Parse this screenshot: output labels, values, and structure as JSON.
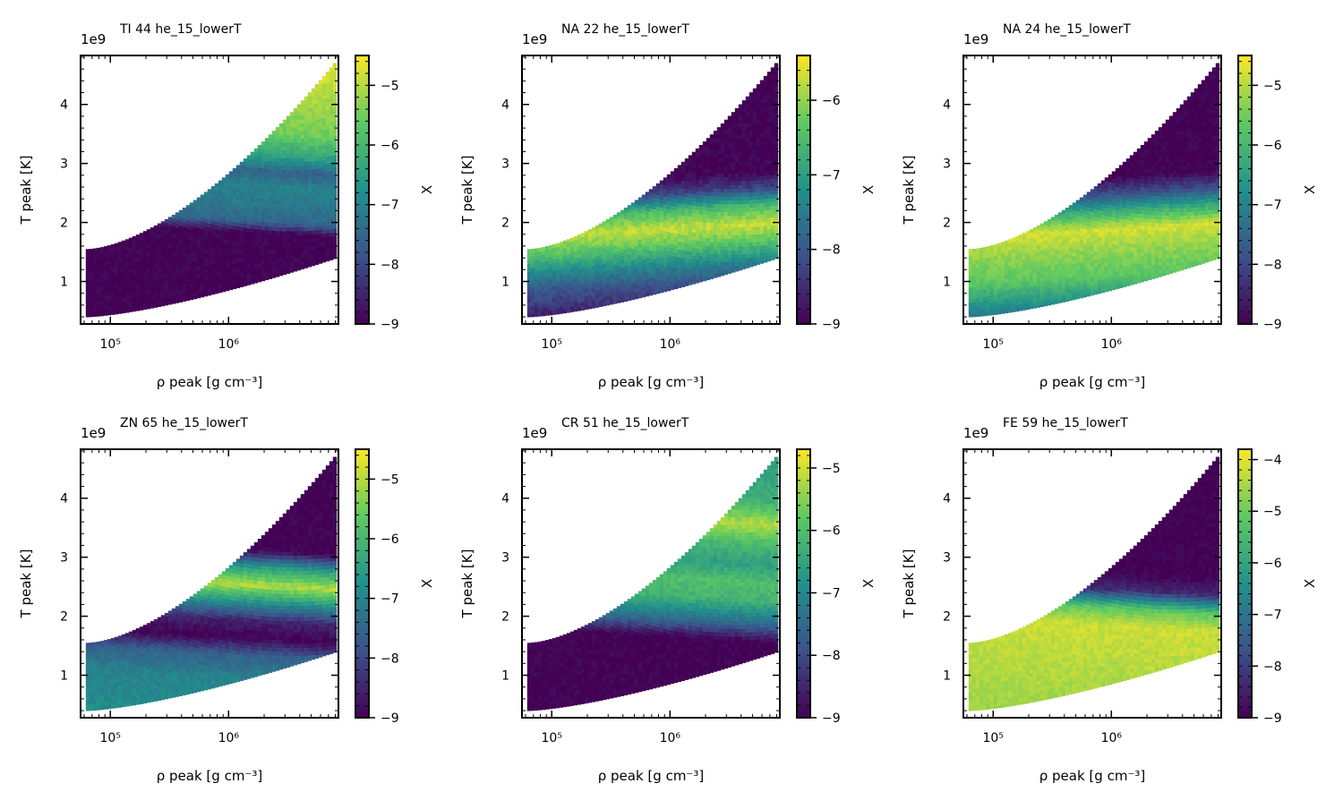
{
  "figure": {
    "x_axis_label": "ρ peak [g cm⁻³]",
    "y_axis_label": "T peak [K]",
    "y_offset_label": "1e9",
    "colorbar_label": "X",
    "colormap": "viridis",
    "colormap_stops": [
      "#440154",
      "#3b528b",
      "#21918c",
      "#5ec962",
      "#fde725"
    ]
  },
  "chart_data": [
    {
      "type": "heatmap",
      "title": "TI 44 he_15_lowerT",
      "xscale": "log",
      "xlim": [
        56000,
        8500000
      ],
      "x_ticks": [
        {
          "value": 100000,
          "label": "10⁵"
        },
        {
          "value": 1000000,
          "label": "10⁶"
        }
      ],
      "ylim": [
        0.28,
        4.83
      ],
      "y_ticks": [
        1,
        2,
        3,
        4
      ],
      "clim": [
        -9,
        -4.5
      ],
      "cbar_ticks": [
        -9,
        -8,
        -7,
        -6,
        -5
      ],
      "color_profile": [
        [
          0.3,
          -9
        ],
        [
          1.9,
          -9
        ],
        [
          2.1,
          -7.5
        ],
        [
          2.4,
          -7.2
        ],
        [
          2.7,
          -7
        ],
        [
          2.95,
          -7.6
        ],
        [
          3.2,
          -6.5
        ],
        [
          3.6,
          -5.5
        ],
        [
          4.2,
          -5.1
        ],
        [
          4.8,
          -4.7
        ]
      ]
    },
    {
      "type": "heatmap",
      "title": "NA 22 he_15_lowerT",
      "xscale": "log",
      "xlim": [
        56000,
        8500000
      ],
      "x_ticks": [
        {
          "value": 100000,
          "label": "10⁵"
        },
        {
          "value": 1000000,
          "label": "10⁶"
        }
      ],
      "ylim": [
        0.28,
        4.83
      ],
      "y_ticks": [
        1,
        2,
        3,
        4
      ],
      "clim": [
        -9,
        -5.4
      ],
      "cbar_ticks": [
        -9,
        -8,
        -7,
        -6
      ],
      "color_profile": [
        [
          0.3,
          -9
        ],
        [
          0.6,
          -8.6
        ],
        [
          1.0,
          -8
        ],
        [
          1.3,
          -7.3
        ],
        [
          1.6,
          -6.4
        ],
        [
          1.9,
          -5.7
        ],
        [
          2.2,
          -6.5
        ],
        [
          2.5,
          -8.2
        ],
        [
          2.8,
          -9
        ],
        [
          4.8,
          -9
        ]
      ]
    },
    {
      "type": "heatmap",
      "title": "NA 24 he_15_lowerT",
      "xscale": "log",
      "xlim": [
        56000,
        8500000
      ],
      "x_ticks": [
        {
          "value": 100000,
          "label": "10⁵"
        },
        {
          "value": 1000000,
          "label": "10⁶"
        }
      ],
      "ylim": [
        0.28,
        4.83
      ],
      "y_ticks": [
        1,
        2,
        3,
        4
      ],
      "clim": [
        -9,
        -4.5
      ],
      "cbar_ticks": [
        -9,
        -8,
        -7,
        -6,
        -5
      ],
      "color_profile": [
        [
          0.3,
          -7.8
        ],
        [
          0.7,
          -6.8
        ],
        [
          1.1,
          -5.7
        ],
        [
          1.5,
          -5.3
        ],
        [
          1.9,
          -4.8
        ],
        [
          2.2,
          -6.2
        ],
        [
          2.5,
          -7.9
        ],
        [
          2.8,
          -9
        ],
        [
          4.8,
          -9
        ]
      ]
    },
    {
      "type": "heatmap",
      "title": "ZN 65 he_15_lowerT",
      "xscale": "log",
      "xlim": [
        56000,
        8500000
      ],
      "x_ticks": [
        {
          "value": 100000,
          "label": "10⁵"
        },
        {
          "value": 1000000,
          "label": "10⁶"
        }
      ],
      "ylim": [
        0.28,
        4.83
      ],
      "y_ticks": [
        1,
        2,
        3,
        4
      ],
      "clim": [
        -9,
        -4.5
      ],
      "cbar_ticks": [
        -9,
        -8,
        -7,
        -6,
        -5
      ],
      "color_profile": [
        [
          0.3,
          -6.8
        ],
        [
          1.0,
          -7
        ],
        [
          1.4,
          -7.6
        ],
        [
          1.7,
          -9
        ],
        [
          2.0,
          -8.5
        ],
        [
          2.3,
          -6.8
        ],
        [
          2.6,
          -5
        ],
        [
          2.9,
          -6.5
        ],
        [
          3.2,
          -9
        ],
        [
          4.8,
          -9
        ]
      ]
    },
    {
      "type": "heatmap",
      "title": "CR 51 he_15_lowerT",
      "xscale": "log",
      "xlim": [
        56000,
        8500000
      ],
      "x_ticks": [
        {
          "value": 100000,
          "label": "10⁵"
        },
        {
          "value": 1000000,
          "label": "10⁶"
        }
      ],
      "ylim": [
        0.28,
        4.83
      ],
      "y_ticks": [
        1,
        2,
        3,
        4
      ],
      "clim": [
        -9,
        -4.7
      ],
      "cbar_ticks": [
        -9,
        -8,
        -7,
        -6,
        -5
      ],
      "color_profile": [
        [
          0.3,
          -9
        ],
        [
          1.7,
          -9
        ],
        [
          2.0,
          -7.5
        ],
        [
          2.4,
          -6.2
        ],
        [
          2.7,
          -6
        ],
        [
          3.0,
          -6.6
        ],
        [
          3.3,
          -6.2
        ],
        [
          3.7,
          -5.2
        ],
        [
          4.1,
          -6.3
        ],
        [
          4.8,
          -6.6
        ]
      ]
    },
    {
      "type": "heatmap",
      "title": "FE 59 he_15_lowerT",
      "xscale": "log",
      "xlim": [
        56000,
        8500000
      ],
      "x_ticks": [
        {
          "value": 100000,
          "label": "10⁵"
        },
        {
          "value": 1000000,
          "label": "10⁶"
        }
      ],
      "ylim": [
        0.28,
        4.83
      ],
      "y_ticks": [
        1,
        2,
        3,
        4
      ],
      "clim": [
        -9,
        -3.8
      ],
      "cbar_ticks": [
        -9,
        -8,
        -7,
        -6,
        -5,
        -4
      ],
      "color_profile": [
        [
          0.3,
          -4.6
        ],
        [
          0.8,
          -4.5
        ],
        [
          1.5,
          -4.3
        ],
        [
          1.9,
          -4.2
        ],
        [
          2.2,
          -5.2
        ],
        [
          2.5,
          -8.3
        ],
        [
          2.8,
          -9
        ],
        [
          4.8,
          -9
        ]
      ]
    }
  ]
}
